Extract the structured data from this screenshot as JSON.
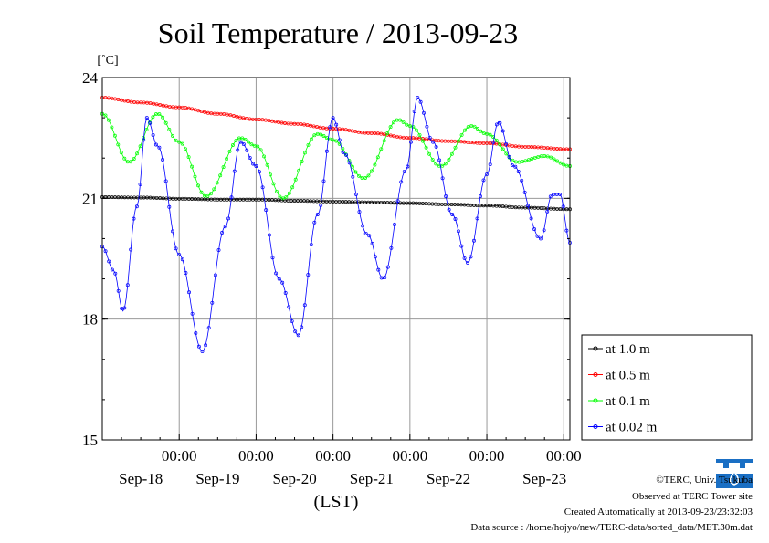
{
  "chart_data": {
    "type": "line",
    "title": "Soil Temperature / 2013-09-23",
    "unit_label": "[˚C]",
    "xlabel": "(LST)",
    "ylim": [
      15,
      24
    ],
    "xlim": [
      0,
      6.08
    ],
    "y_ticks": [
      {
        "value": 15,
        "label": "15"
      },
      {
        "value": 18,
        "label": "18"
      },
      {
        "value": 21,
        "label": "21"
      },
      {
        "value": 24,
        "label": "24"
      }
    ],
    "x_ticks": [
      {
        "value": 1.0,
        "time": "00:00",
        "date": "Sep-18"
      },
      {
        "value": 2.0,
        "time": "00:00",
        "date": "Sep-19"
      },
      {
        "value": 3.0,
        "time": "00:00",
        "date": "Sep-20"
      },
      {
        "value": 4.0,
        "time": "00:00",
        "date": "Sep-21"
      },
      {
        "value": 5.0,
        "time": "00:00",
        "date": "Sep-22"
      },
      {
        "value": 6.0,
        "time": "00:00",
        "date": ""
      }
    ],
    "extra_date_labels": [
      {
        "value": 5.75,
        "label": "Sep-23"
      }
    ],
    "legend_position": "right",
    "grid": true,
    "series": [
      {
        "name": "at 1.0 m",
        "color": "#000000",
        "points": [
          [
            0,
            21.03
          ],
          [
            0.5,
            21.02
          ],
          [
            1,
            20.99
          ],
          [
            1.5,
            20.97
          ],
          [
            2,
            20.97
          ],
          [
            2.5,
            20.94
          ],
          [
            3,
            20.92
          ],
          [
            3.5,
            20.9
          ],
          [
            4,
            20.88
          ],
          [
            4.5,
            20.85
          ],
          [
            5,
            20.82
          ],
          [
            5.5,
            20.77
          ],
          [
            6.08,
            20.73
          ]
        ]
      },
      {
        "name": "at 0.5 m",
        "color": "#ff0000",
        "points": [
          [
            0,
            23.5
          ],
          [
            0.5,
            23.38
          ],
          [
            1,
            23.26
          ],
          [
            1.5,
            23.1
          ],
          [
            2,
            22.96
          ],
          [
            2.5,
            22.85
          ],
          [
            3,
            22.73
          ],
          [
            3.5,
            22.62
          ],
          [
            4,
            22.5
          ],
          [
            4.5,
            22.42
          ],
          [
            5,
            22.37
          ],
          [
            5.5,
            22.28
          ],
          [
            6.08,
            22.22
          ]
        ]
      },
      {
        "name": "at 0.1 m",
        "color": "#00ff00",
        "points": [
          [
            0,
            23.1
          ],
          [
            0.35,
            21.9
          ],
          [
            0.72,
            23.1
          ],
          [
            1.0,
            22.4
          ],
          [
            1.35,
            21.05
          ],
          [
            1.8,
            22.5
          ],
          [
            2.0,
            22.3
          ],
          [
            2.35,
            21.0
          ],
          [
            2.8,
            22.6
          ],
          [
            3.0,
            22.45
          ],
          [
            3.4,
            21.5
          ],
          [
            3.85,
            22.95
          ],
          [
            4.0,
            22.8
          ],
          [
            4.4,
            21.8
          ],
          [
            4.8,
            22.8
          ],
          [
            5.0,
            22.6
          ],
          [
            5.4,
            21.9
          ],
          [
            5.75,
            22.05
          ],
          [
            6.08,
            21.8
          ]
        ]
      },
      {
        "name": "at 0.02 m",
        "color": "#0000ff",
        "points": [
          [
            0,
            19.8
          ],
          [
            0.15,
            19.2
          ],
          [
            0.27,
            18.2
          ],
          [
            0.45,
            20.8
          ],
          [
            0.58,
            23.0
          ],
          [
            0.72,
            22.3
          ],
          [
            1.0,
            19.6
          ],
          [
            1.3,
            17.2
          ],
          [
            1.6,
            20.3
          ],
          [
            1.8,
            22.4
          ],
          [
            2.0,
            21.8
          ],
          [
            2.3,
            19.0
          ],
          [
            2.55,
            17.6
          ],
          [
            2.8,
            20.6
          ],
          [
            3.0,
            23.0
          ],
          [
            3.15,
            22.1
          ],
          [
            3.45,
            20.1
          ],
          [
            3.65,
            19.0
          ],
          [
            3.95,
            21.7
          ],
          [
            4.1,
            23.5
          ],
          [
            4.3,
            22.4
          ],
          [
            4.55,
            20.6
          ],
          [
            4.75,
            19.4
          ],
          [
            5.0,
            21.6
          ],
          [
            5.15,
            22.9
          ],
          [
            5.35,
            21.8
          ],
          [
            5.7,
            20.0
          ],
          [
            5.85,
            21.1
          ],
          [
            5.95,
            21.1
          ],
          [
            6.08,
            19.9
          ]
        ]
      }
    ]
  },
  "footer": {
    "credit": "©TERC, Univ. Tsukuba",
    "site": "Observed at TERC Tower site",
    "created": "Created Automatically at 2013-09-23/23:32:03",
    "source": "Data source : /home/hojyo/new/TERC-data/sorted_data/MET.30m.dat"
  }
}
